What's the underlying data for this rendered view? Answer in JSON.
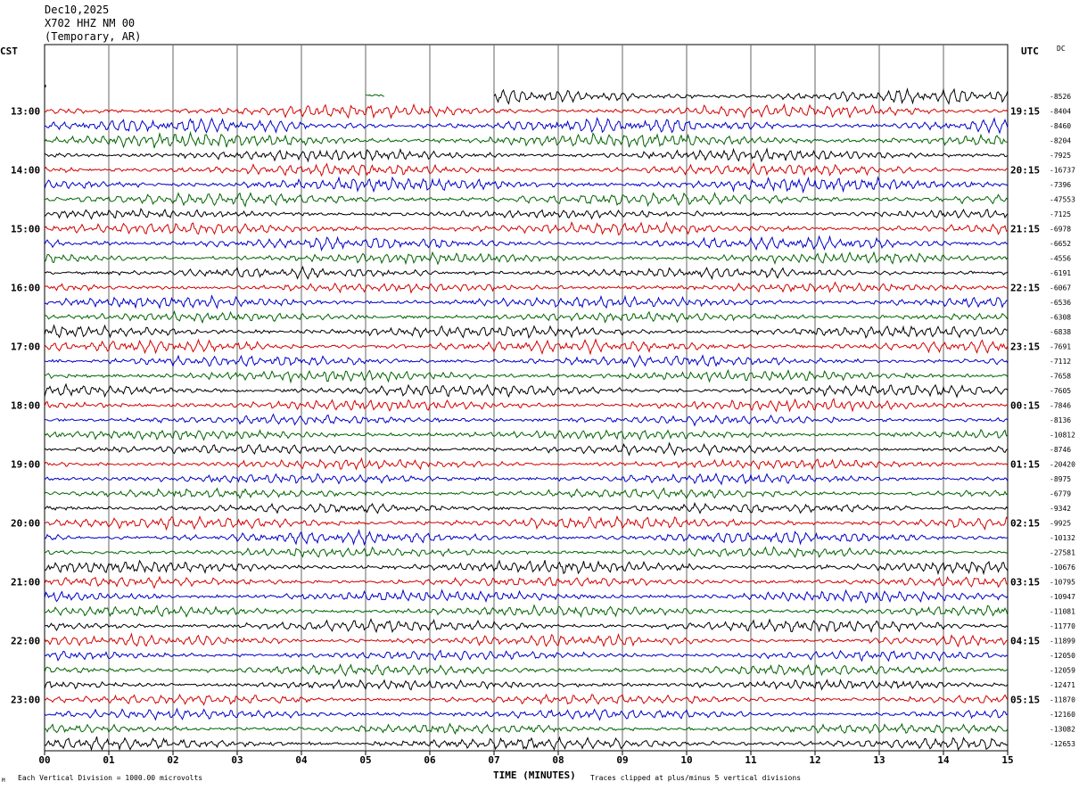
{
  "header": {
    "date": "Dec10,2025",
    "station": "X702 HHZ NM 00",
    "location": "(Temporary, AR)"
  },
  "axis_labels": {
    "left_zone": "CST",
    "right_zone": "UTC",
    "dc": "DC"
  },
  "footer": {
    "left_note": "Each Vertical Division = 1000.00 microvolts",
    "right_note": "Traces clipped at plus/minus 5 vertical divisions",
    "corner_mark": "M"
  },
  "chart_data": {
    "type": "line",
    "title": "Dec10,2025 X702 HHZ NM 00 (Temporary, AR)",
    "xlabel": "TIME (MINUTES)",
    "x_ticks": [
      "00",
      "01",
      "02",
      "03",
      "04",
      "05",
      "06",
      "07",
      "08",
      "09",
      "10",
      "11",
      "12",
      "13",
      "14",
      "15"
    ],
    "xlim": [
      0,
      15
    ],
    "left_hour_labels": [
      "13:00",
      "14:00",
      "15:00",
      "16:00",
      "17:00",
      "18:00",
      "19:00",
      "20:00",
      "21:00",
      "22:00",
      "23:00"
    ],
    "right_hour_labels": [
      "19:15",
      "20:15",
      "21:15",
      "22:15",
      "23:15",
      "00:15",
      "01:15",
      "02:15",
      "03:15",
      "04:15",
      "05:15"
    ],
    "trace_colors": [
      "#000000",
      "#d40000",
      "#0000c8",
      "#006400"
    ],
    "traces_per_hour": 4,
    "trace_offset_labels": [
      "-8526",
      "-8404",
      "-8460",
      "-8204",
      "-7925",
      "-16737",
      "-7396",
      "-47553",
      "-7125",
      "-6978",
      "-6652",
      "-4556",
      "-6191",
      "-6067",
      "-6536",
      "-6308",
      "-6838",
      "-7691",
      "-7112",
      "-7658",
      "-7605",
      "-7846",
      "-8136",
      "-10812",
      "-8746",
      "-20420",
      "-8975",
      "-6779",
      "-9342",
      "-9925",
      "-10132",
      "-27581",
      "-10676",
      "-10795",
      "-10947",
      "-11081",
      "-11770",
      "-11899",
      "-12050",
      "-12059",
      "-12471",
      "-11870",
      "-12160",
      "-13082",
      "-12653"
    ],
    "grid": true
  }
}
